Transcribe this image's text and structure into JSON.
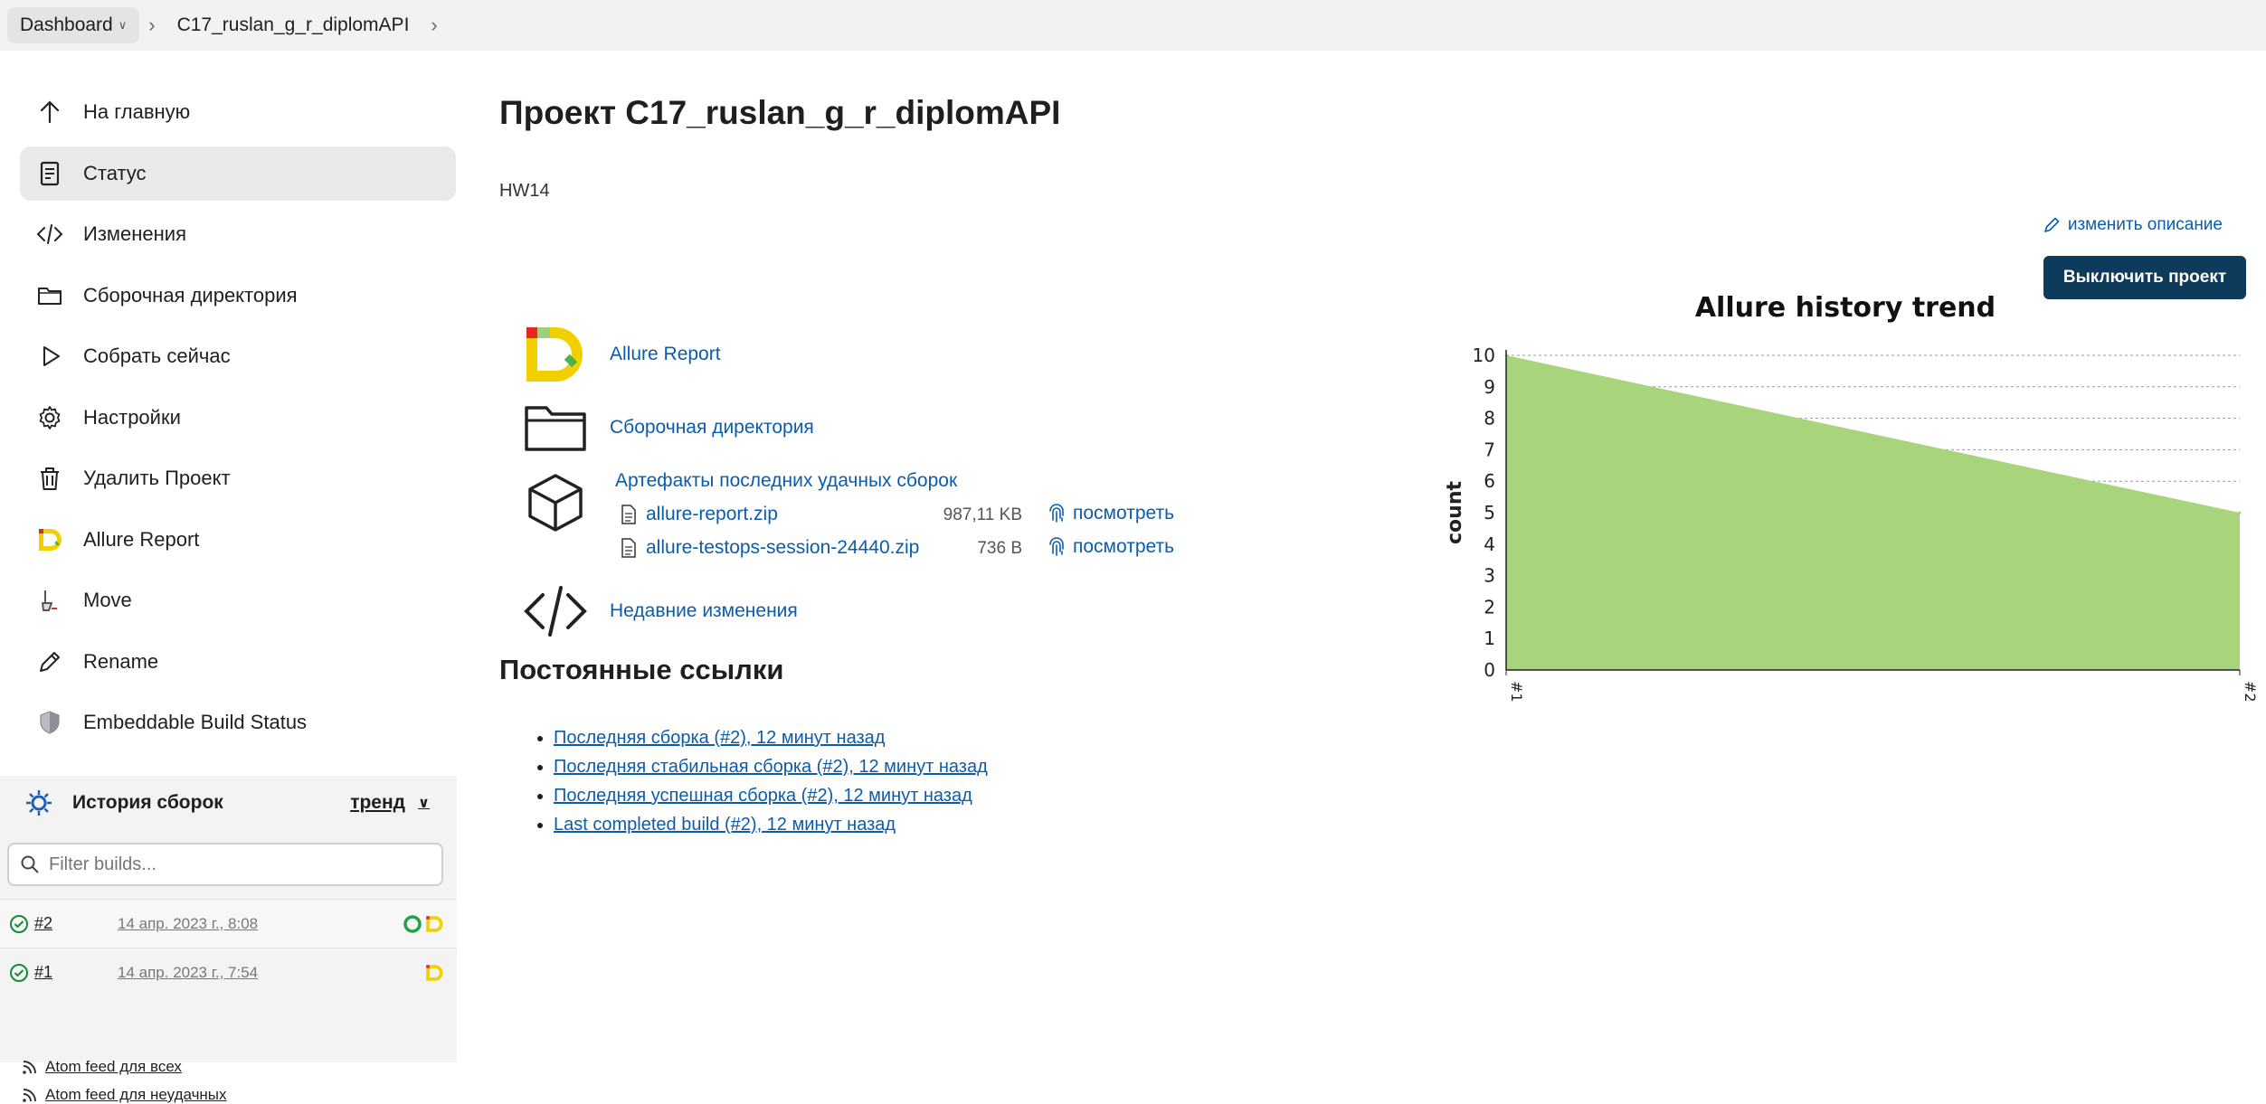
{
  "breadcrumb": {
    "dashboard": "Dashboard",
    "project": "C17_ruslan_g_r_diplomAPI"
  },
  "sidebar": {
    "items": [
      {
        "label": "На главную",
        "icon": "arrow-up-icon"
      },
      {
        "label": "Статус",
        "icon": "document-icon"
      },
      {
        "label": "Изменения",
        "icon": "code-icon"
      },
      {
        "label": "Сборочная директория",
        "icon": "folder-icon"
      },
      {
        "label": "Собрать сейчас",
        "icon": "play-icon"
      },
      {
        "label": "Настройки",
        "icon": "gear-icon"
      },
      {
        "label": "Удалить Проект",
        "icon": "trash-icon"
      },
      {
        "label": "Allure Report",
        "icon": "allure-icon"
      },
      {
        "label": "Move",
        "icon": "move-icon"
      },
      {
        "label": "Rename",
        "icon": "pencil-icon"
      },
      {
        "label": "Embeddable Build Status",
        "icon": "shield-icon"
      }
    ],
    "history": {
      "title": "История сборок",
      "trend": "тренд",
      "filter_placeholder": "Filter builds...",
      "builds": [
        {
          "number": "#2",
          "date": "14 апр. 2023 г., 8:08"
        },
        {
          "number": "#1",
          "date": "14 апр. 2023 г., 7:54"
        }
      ],
      "feeds": [
        "Atom feed для всех",
        "Atom feed для неудачных"
      ]
    }
  },
  "main": {
    "title": "Проект C17_ruslan_g_r_diplomAPI",
    "description": "HW14",
    "edit_description": "изменить описание",
    "disable_button": "Выключить проект",
    "links": {
      "allure": "Allure Report",
      "workspace": "Сборочная директория",
      "artifacts": "Артефакты последних удачных сборок",
      "changes": "Недавние изменения"
    },
    "artifact_files": [
      {
        "name": "allure-report.zip",
        "size": "987,11 KB",
        "view": "посмотреть"
      },
      {
        "name": "allure-testops-session-24440.zip",
        "size": "736 B",
        "view": "посмотреть"
      }
    ],
    "permalinks_title": "Постоянные ссылки",
    "permalinks": [
      "Последняя сборка (#2), 12 минут назад",
      "Последняя стабильная сборка (#2), 12 минут назад",
      "Последняя успешная сборка (#2), 12 минут назад",
      "Last completed build (#2), 12 минут назад"
    ]
  },
  "chart_data": {
    "type": "area",
    "title": "Allure history trend",
    "xlabel": "",
    "ylabel": "count",
    "categories": [
      "#1",
      "#2"
    ],
    "series": [
      {
        "values": [
          10,
          5
        ],
        "color": "#a8d57b"
      }
    ],
    "ylim": [
      0,
      10
    ],
    "yticks": [
      0,
      1,
      2,
      3,
      4,
      5,
      6,
      7,
      8,
      9,
      10
    ],
    "grid": true
  },
  "colors": {
    "accent": "#0b5cad",
    "button": "#0e3a5c",
    "area": "#a8d57b",
    "success": "#138a36"
  }
}
